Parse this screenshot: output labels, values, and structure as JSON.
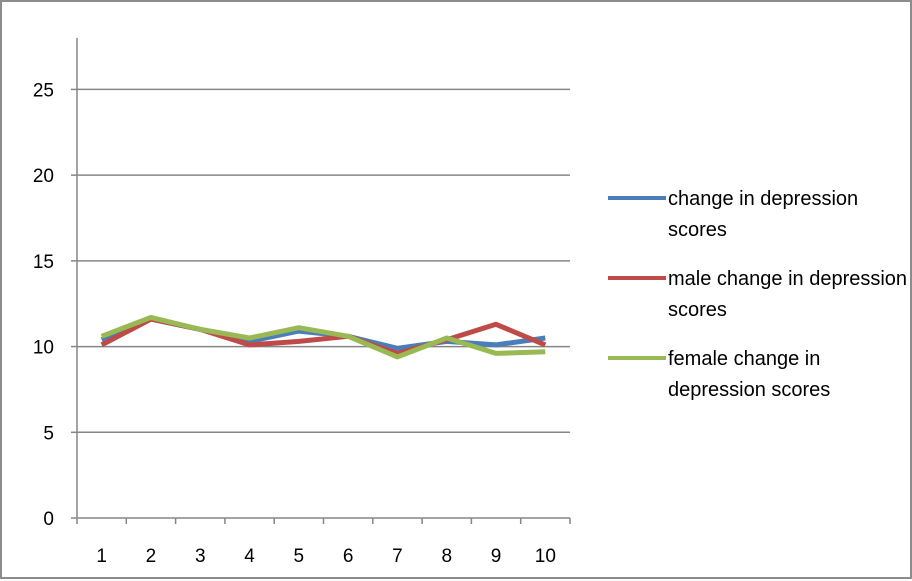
{
  "chart_data": {
    "type": "line",
    "title": "",
    "xlabel": "",
    "ylabel": "",
    "x": [
      1,
      2,
      3,
      4,
      5,
      6,
      7,
      8,
      9,
      10
    ],
    "ylim": [
      0,
      25
    ],
    "yticks": [
      0,
      5,
      10,
      15,
      20,
      25
    ],
    "grid": true,
    "legend_position": "right",
    "series": [
      {
        "name": "change in depression scores",
        "color": "#4a7ebb",
        "values": [
          10.4,
          11.6,
          11.0,
          10.3,
          10.9,
          10.6,
          9.9,
          10.3,
          10.1,
          10.5
        ]
      },
      {
        "name": "male change in depression scores",
        "color": "#be4b48",
        "values": [
          10.1,
          11.6,
          11.0,
          10.1,
          10.3,
          10.6,
          9.6,
          10.4,
          11.3,
          10.1
        ]
      },
      {
        "name": "female change in depression scores",
        "color": "#98b954",
        "values": [
          10.6,
          11.7,
          11.0,
          10.5,
          11.1,
          10.6,
          9.4,
          10.5,
          9.6,
          9.7
        ]
      }
    ]
  }
}
